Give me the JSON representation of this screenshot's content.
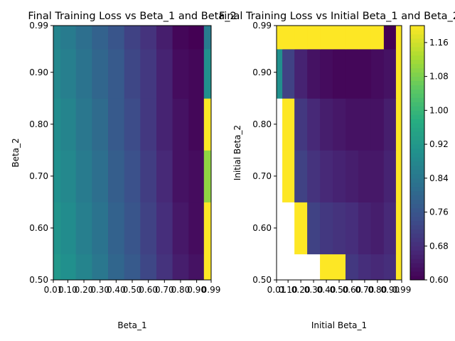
{
  "chart_data": [
    {
      "type": "heatmap",
      "title": "Final Training Loss vs Beta_1 and Beta_2",
      "xlabel": "Beta_1",
      "ylabel": "Beta_2",
      "x": [
        0.01,
        0.1,
        0.2,
        0.3,
        0.4,
        0.5,
        0.6,
        0.7,
        0.8,
        0.9,
        0.99
      ],
      "y": [
        0.5,
        0.6,
        0.7,
        0.8,
        0.9,
        0.99
      ],
      "x_tick_labels": [
        "0.01",
        "0.10",
        "0.20",
        "0.30",
        "0.40",
        "0.50",
        "0.60",
        "0.70",
        "0.80",
        "0.90",
        "0.99"
      ],
      "y_tick_labels": [
        "0.50",
        "0.60",
        "0.70",
        "0.80",
        "0.90",
        "0.99"
      ],
      "values": [
        [
          0.92,
          0.9,
          0.87,
          0.84,
          0.8,
          0.77,
          0.73,
          0.69,
          0.65,
          0.63,
          1.2
        ],
        [
          0.91,
          0.89,
          0.86,
          0.83,
          0.79,
          0.76,
          0.72,
          0.68,
          0.64,
          0.62,
          1.2
        ],
        [
          0.9,
          0.88,
          0.85,
          0.82,
          0.78,
          0.75,
          0.71,
          0.67,
          0.63,
          0.62,
          1.1
        ],
        [
          0.89,
          0.87,
          0.84,
          0.81,
          0.77,
          0.74,
          0.7,
          0.66,
          0.63,
          0.61,
          1.2
        ],
        [
          0.88,
          0.86,
          0.83,
          0.8,
          0.77,
          0.73,
          0.7,
          0.66,
          0.62,
          0.61,
          0.9
        ],
        [
          0.87,
          0.85,
          0.82,
          0.79,
          0.76,
          0.72,
          0.69,
          0.65,
          0.61,
          0.6,
          0.85
        ]
      ]
    },
    {
      "type": "heatmap",
      "title": "Final Training Loss vs Initial Beta_1 and Beta_2",
      "xlabel": "Initial Beta_1",
      "ylabel": "Initial Beta_2",
      "x": [
        0.01,
        0.1,
        0.2,
        0.3,
        0.4,
        0.5,
        0.6,
        0.7,
        0.8,
        0.9,
        0.99
      ],
      "y": [
        0.5,
        0.6,
        0.7,
        0.8,
        0.9,
        0.99
      ],
      "x_tick_labels": [
        "0.01",
        "0.10",
        "0.20",
        "0.30",
        "0.40",
        "0.50",
        "0.60",
        "0.70",
        "0.80",
        "0.90",
        "0.99"
      ],
      "y_tick_labels": [
        "0.50",
        "0.60",
        "0.70",
        "0.80",
        "0.90",
        "0.99"
      ],
      "values": [
        [
          null,
          null,
          null,
          null,
          1.2,
          1.2,
          0.7,
          0.68,
          0.67,
          0.68,
          1.2
        ],
        [
          null,
          null,
          1.2,
          0.72,
          0.7,
          0.69,
          0.68,
          0.66,
          0.65,
          0.67,
          1.2
        ],
        [
          null,
          1.2,
          0.72,
          0.69,
          0.67,
          0.66,
          0.65,
          0.64,
          0.64,
          0.66,
          1.2
        ],
        [
          null,
          1.2,
          0.7,
          0.67,
          0.65,
          0.64,
          0.63,
          0.63,
          0.63,
          0.65,
          1.2
        ],
        [
          0.9,
          0.72,
          0.66,
          0.63,
          0.62,
          0.61,
          0.61,
          0.61,
          0.62,
          0.63,
          1.2
        ],
        [
          1.2,
          1.2,
          1.2,
          1.2,
          1.2,
          1.2,
          1.2,
          1.2,
          1.2,
          0.6,
          1.2
        ]
      ]
    }
  ],
  "colorbar": {
    "tick_labels": [
      "0.60",
      "0.68",
      "0.76",
      "0.84",
      "0.92",
      "1.00",
      "1.08",
      "1.16"
    ],
    "range": [
      0.6,
      1.2
    ],
    "colormap": "viridis"
  }
}
